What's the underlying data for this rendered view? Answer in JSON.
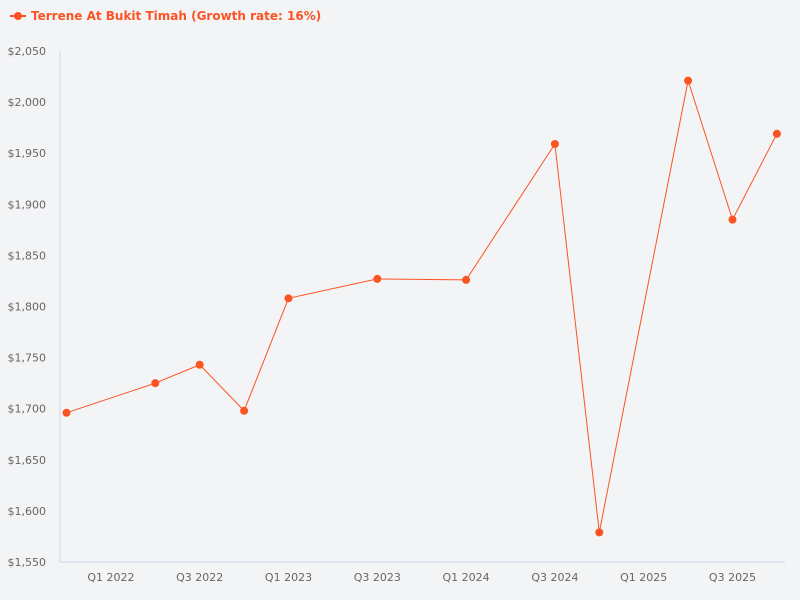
{
  "legend": {
    "label": "Terrene At Bukit Timah (Growth rate: 16%)",
    "color": "#fc5322"
  },
  "colors": {
    "series": "#fc5322",
    "axis": "#ccd6eb",
    "tick_text": "#666666",
    "background": "#f3f4f6"
  },
  "chart_data": {
    "type": "line",
    "title": "",
    "xlabel": "",
    "ylabel": "",
    "ylim": [
      1550,
      2050
    ],
    "yticks": [
      "$1,550",
      "$1,600",
      "$1,650",
      "$1,700",
      "$1,750",
      "$1,800",
      "$1,850",
      "$1,900",
      "$1,950",
      "$2,000",
      "$2,050"
    ],
    "xticks": [
      "Q1 2022",
      "Q3 2022",
      "Q1 2023",
      "Q3 2023",
      "Q1 2024",
      "Q3 2024",
      "Q1 2025",
      "Q3 2025"
    ],
    "grid": false,
    "legend_position": "top-left",
    "categories": [
      "Q4 2021",
      "Q1 2022",
      "Q2 2022",
      "Q3 2022",
      "Q4 2022",
      "Q1 2023",
      "Q2 2023",
      "Q3 2023",
      "Q4 2023",
      "Q1 2024",
      "Q2 2024",
      "Q3 2024",
      "Q4 2024",
      "Q1 2025",
      "Q2 2025",
      "Q3 2025",
      "Q4 2025"
    ],
    "series": [
      {
        "name": "Terrene At Bukit Timah (Growth rate: 16%)",
        "points": [
          {
            "index": 0,
            "x": "Q4 2021",
            "y": 1696
          },
          {
            "index": 2,
            "x": "Q2 2022",
            "y": 1725
          },
          {
            "index": 3,
            "x": "Q3 2022",
            "y": 1743
          },
          {
            "index": 4,
            "x": "Q4 2022",
            "y": 1698
          },
          {
            "index": 5,
            "x": "Q1 2023",
            "y": 1808
          },
          {
            "index": 7,
            "x": "Q3 2023",
            "y": 1827
          },
          {
            "index": 9,
            "x": "Q1 2024",
            "y": 1826
          },
          {
            "index": 11,
            "x": "Q3 2024",
            "y": 1959
          },
          {
            "index": 12,
            "x": "Q4 2024",
            "y": 1579
          },
          {
            "index": 14,
            "x": "Q2 2025",
            "y": 2021
          },
          {
            "index": 15,
            "x": "Q3 2025",
            "y": 1885
          },
          {
            "index": 16,
            "x": "Q4 2025",
            "y": 1969
          }
        ]
      }
    ]
  }
}
